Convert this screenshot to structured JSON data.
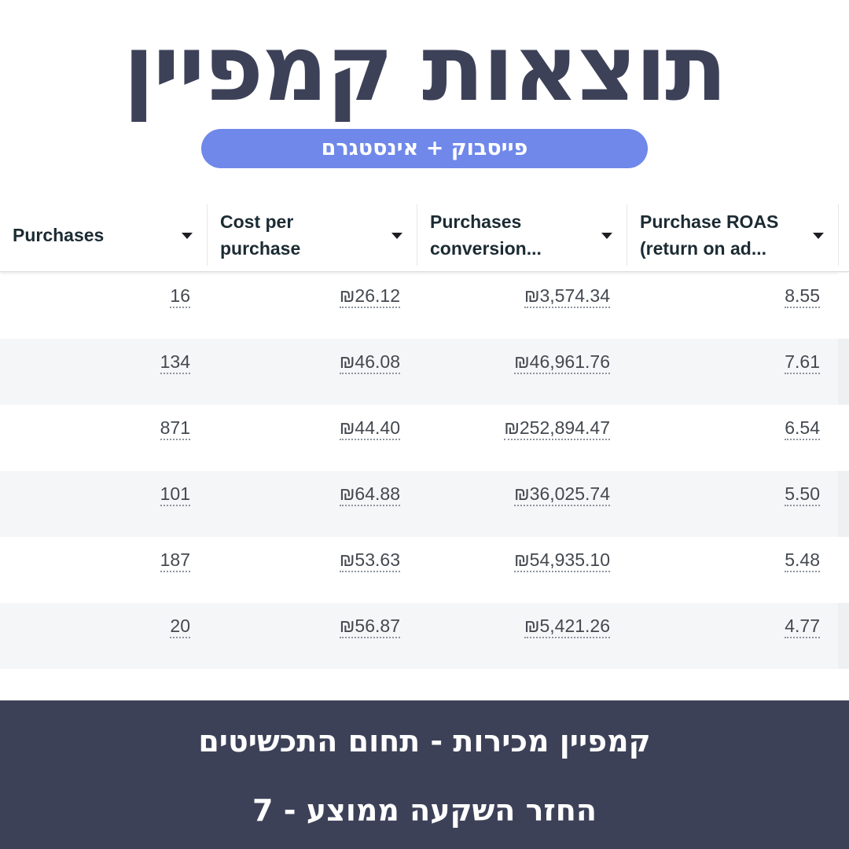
{
  "title": "תוצאות קמפיין",
  "subtitle": "פייסבוק + אינסטגרם",
  "table": {
    "columns": [
      {
        "line1": "Purchases",
        "line2": ""
      },
      {
        "line1": "Cost per",
        "line2": "purchase"
      },
      {
        "line1": "Purchases",
        "line2": "conversion..."
      },
      {
        "line1": "Purchase ROAS",
        "line2": "(return on ad..."
      }
    ],
    "rows": [
      {
        "purchases": "16",
        "cost": "₪26.12",
        "conversion": "₪3,574.34",
        "roas": "8.55"
      },
      {
        "purchases": "134",
        "cost": "₪46.08",
        "conversion": "₪46,961.76",
        "roas": "7.61"
      },
      {
        "purchases": "871",
        "cost": "₪44.40",
        "conversion": "₪252,894.47",
        "roas": "6.54"
      },
      {
        "purchases": "101",
        "cost": "₪64.88",
        "conversion": "₪36,025.74",
        "roas": "5.50"
      },
      {
        "purchases": "187",
        "cost": "₪53.63",
        "conversion": "₪54,935.10",
        "roas": "5.48"
      },
      {
        "purchases": "20",
        "cost": "₪56.87",
        "conversion": "₪5,421.26",
        "roas": "4.77"
      }
    ]
  },
  "footer": {
    "line1": "קמפיין מכירות - תחום התכשיטים",
    "line2": "החזר השקעה ממוצע - 7"
  },
  "colors": {
    "navy": "#3d4158",
    "pill_blue": "#6f88ea",
    "row_stripe": "#f5f6f7"
  }
}
